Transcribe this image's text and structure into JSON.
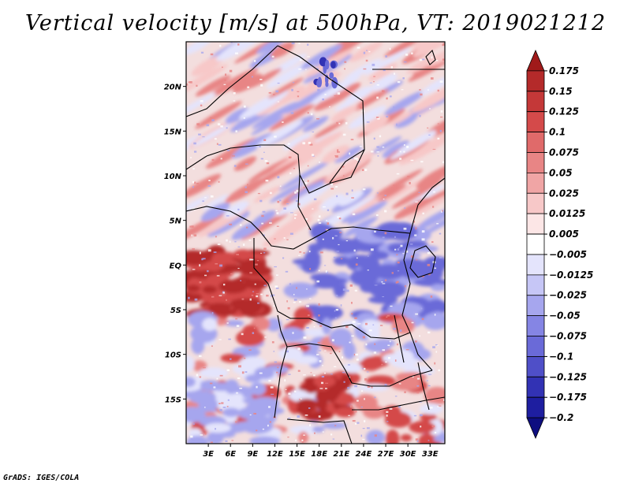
{
  "title": "Vertical velocity [m/s] at 500hPa, VT: 2019021212",
  "credit": "GrADS: IGES/COLA",
  "chart_data": {
    "type": "heatmap",
    "title": "Vertical velocity [m/s] at 500hPa, VT: 2019021212",
    "variable": "Vertical velocity",
    "units": "m/s",
    "level": "500hPa",
    "valid_time": "2019021212",
    "lon_range": [
      0,
      35
    ],
    "lat_range": [
      -20,
      25
    ],
    "x_ticks": [
      {
        "value": 3,
        "label": "3E"
      },
      {
        "value": 6,
        "label": "6E"
      },
      {
        "value": 9,
        "label": "9E"
      },
      {
        "value": 12,
        "label": "12E"
      },
      {
        "value": 15,
        "label": "15E"
      },
      {
        "value": 18,
        "label": "18E"
      },
      {
        "value": 21,
        "label": "21E"
      },
      {
        "value": 24,
        "label": "24E"
      },
      {
        "value": 27,
        "label": "27E"
      },
      {
        "value": 30,
        "label": "30E"
      },
      {
        "value": 33,
        "label": "33E"
      }
    ],
    "y_ticks": [
      {
        "value": 20,
        "label": "20N"
      },
      {
        "value": 15,
        "label": "15N"
      },
      {
        "value": 10,
        "label": "10N"
      },
      {
        "value": 5,
        "label": "5N"
      },
      {
        "value": 0,
        "label": "EQ"
      },
      {
        "value": -5,
        "label": "5S"
      },
      {
        "value": -10,
        "label": "10S"
      },
      {
        "value": -15,
        "label": "15S"
      }
    ],
    "colorbar": {
      "levels": [
        "0.175",
        "0.15",
        "0.125",
        "0.1",
        "0.075",
        "0.05",
        "0.025",
        "0.0125",
        "0.005",
        "−0.005",
        "−0.0125",
        "−0.025",
        "−0.05",
        "−0.075",
        "−0.1",
        "−0.125",
        "−0.175",
        "−0.2"
      ],
      "colors": [
        "#a01a1a",
        "#b42a2a",
        "#c43838",
        "#d44a4a",
        "#e06a6a",
        "#e88585",
        "#f0a5a5",
        "#f7c8c8",
        "#fce6e6",
        "#ffffff",
        "#e4e4fc",
        "#c6c6f6",
        "#a6a6ee",
        "#8585e4",
        "#6a6ad8",
        "#4f4fc8",
        "#3232b4",
        "#1e1ea0",
        "#0e0e80"
      ]
    }
  }
}
